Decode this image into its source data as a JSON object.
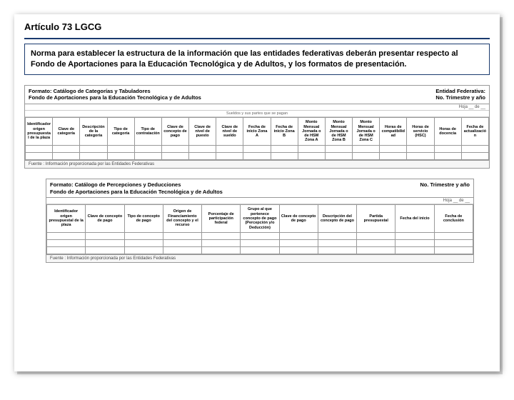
{
  "title": "Artículo 73 LGCG",
  "norma": "Norma para establecer la estructura de la información que las entidades federativas deberán presentar respecto al Fondo de Aportaciones para la Educación Tecnológica y de Adultos, y los formatos de presentación.",
  "form1": {
    "header_left_l1": "Formato: Catálogo de Categorías y Tabuladores",
    "header_left_l2": "Fondo de Aportaciones para la Educación Tecnológica y de Adultos",
    "header_right_l1": "Entidad Federativa:",
    "header_right_l2": "No. Trimestre y año",
    "hoja": "Hoja __ de __",
    "sublabel": "Sueldos y sus partes que se pagan",
    "cols": [
      "Identificador origen presupuestal de la plaza",
      "Clave de categoría",
      "Descripción de la categoría",
      "Tipo de categoría",
      "Tipo de contratación",
      "Clave de concepto de pago",
      "Clave de nivel de puesto",
      "Clave de nivel de sueldo",
      "Fecha de inicio Zona A",
      "Fecha de inicio Zona B",
      "Monto Mensual Jornada o de HSM Zona A",
      "Monto Mensual Jornada o de HSM Zona B",
      "Monto Mensual Jornada o de HSM Zona C",
      "Horas de compatibilidad",
      "Horas de servicio (HSC)",
      "Horas de docencia",
      "Fecha de actualización"
    ],
    "fuente": "Fuente : Información proporcionada por las Entidades Federativas"
  },
  "form2": {
    "header_left_l1": "Formato: Catálogo de Percepciones y Deducciones",
    "header_left_l2": "Fondo de Aportaciones para la Educación Tecnológica y de Adultos",
    "header_right": "No. Trimestre y año",
    "hoja": "Hoja __ de __",
    "cols": [
      "Identificador origen presupuestal de la plaza",
      "Clave de concepto de pago",
      "Tipo de concepto de pago",
      "Origen de Financiamiento del concepto y el recurso",
      "Porcentaje de participación federal",
      "Grupo al que pertenece concepto de pago (Percepción y/o Deducción)",
      "Clave de concepto de pago",
      "Descripción del concepto de pago",
      "Partida presupuestal",
      "Fecha del inicio",
      "Fecha de conclusión"
    ],
    "fuente": "Fuente : Información proporcionada por las Entidades Federativas"
  }
}
